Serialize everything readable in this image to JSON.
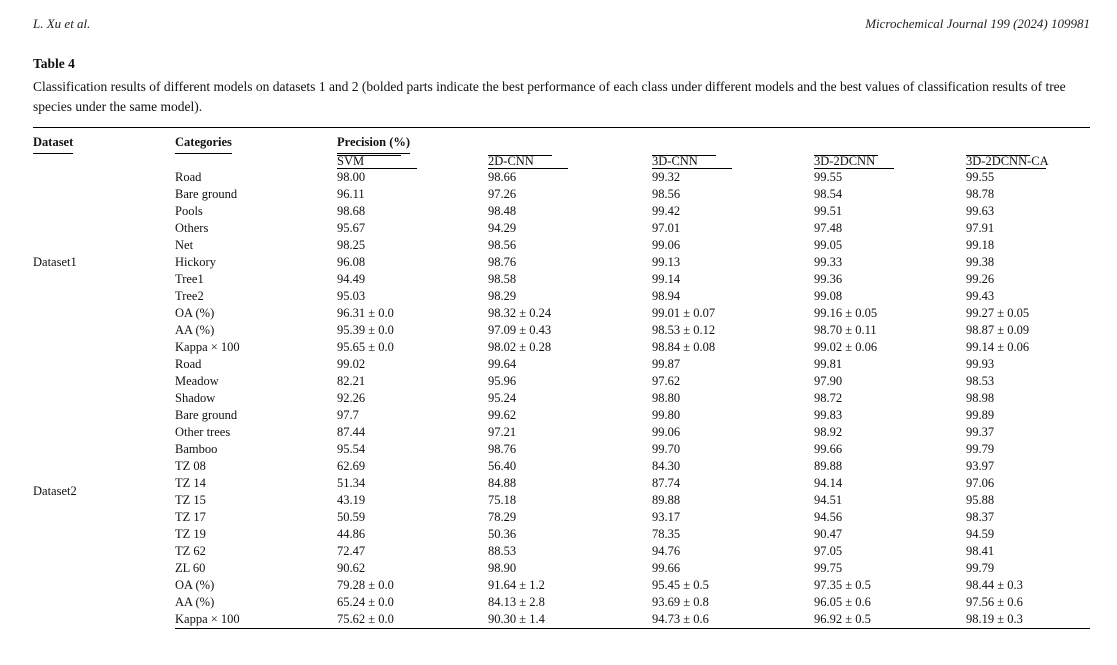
{
  "page_header": {
    "authors": "L. Xu et al.",
    "journal": "Microchemical Journal 199 (2024) 109981"
  },
  "table": {
    "label": "Table 4",
    "caption": "Classification results of different models on datasets 1 and 2 (bolded parts indicate the best performance of each class under different models and the best values of classification results of tree species under the same model).",
    "col_headers": {
      "dataset": "Dataset",
      "categories": "Categories",
      "spanner": "Precision (%)",
      "models": [
        "SVM",
        "2D-CNN",
        "3D-CNN",
        "3D-2DCNN",
        "3D-2DCNN-CA"
      ]
    },
    "sections": [
      {
        "dataset": "Dataset1",
        "rows": [
          {
            "category": "Road",
            "label_bold": false,
            "values": [
              "98.00",
              "98.66",
              "99.32",
              "99.55",
              "99.55"
            ],
            "bold": [
              0,
              0,
              0,
              0,
              1
            ]
          },
          {
            "category": "Bare ground",
            "label_bold": false,
            "values": [
              "96.11",
              "97.26",
              "98.56",
              "98.54",
              "98.78"
            ],
            "bold": [
              0,
              0,
              0,
              0,
              1
            ]
          },
          {
            "category": "Pools",
            "label_bold": false,
            "values": [
              "98.68",
              "98.48",
              "99.42",
              "99.51",
              "99.63"
            ],
            "bold": [
              0,
              0,
              0,
              0,
              1
            ]
          },
          {
            "category": "Others",
            "label_bold": false,
            "values": [
              "95.67",
              "94.29",
              "97.01",
              "97.48",
              "97.91"
            ],
            "bold": [
              0,
              0,
              0,
              0,
              1
            ]
          },
          {
            "category": "Net",
            "label_bold": false,
            "values": [
              "98.25",
              "98.56",
              "99.06",
              "99.05",
              "99.18"
            ],
            "bold": [
              0,
              0,
              0,
              0,
              1
            ]
          },
          {
            "category": "Hickory",
            "label_bold": false,
            "values": [
              "96.08",
              "98.76",
              "99.13",
              "99.33",
              "99.38"
            ],
            "bold": [
              1,
              1,
              0,
              0,
              1
            ]
          },
          {
            "category": "Tree1",
            "label_bold": false,
            "values": [
              "94.49",
              "98.58",
              "99.14",
              "99.36",
              "99.26"
            ],
            "bold": [
              0,
              0,
              1,
              1,
              0
            ]
          },
          {
            "category": "Tree2",
            "label_bold": false,
            "values": [
              "95.03",
              "98.29",
              "98.94",
              "99.08",
              "99.43"
            ],
            "bold": [
              0,
              0,
              0,
              0,
              1
            ]
          },
          {
            "category": "OA (%)",
            "label_bold": true,
            "values": [
              "96.31 ± 0.0",
              "98.32 ± 0.24",
              "99.01 ± 0.07",
              "99.16 ± 0.05",
              "99.27 ± 0.05"
            ],
            "bold": [
              0,
              0,
              0,
              0,
              0
            ]
          },
          {
            "category": "AA (%)",
            "label_bold": true,
            "values": [
              "95.39 ± 0.0",
              "97.09 ± 0.43",
              "98.53 ± 0.12",
              "98.70 ± 0.11",
              "98.87 ± 0.09"
            ],
            "bold": [
              0,
              0,
              0,
              0,
              0
            ]
          },
          {
            "category": "Kappa × 100",
            "label_bold": true,
            "values": [
              "95.65 ± 0.0",
              "98.02 ± 0.28",
              "98.84 ± 0.08",
              "99.02 ± 0.06",
              "99.14 ± 0.06"
            ],
            "bold": [
              0,
              0,
              0,
              0,
              0
            ]
          }
        ]
      },
      {
        "dataset": "Dataset2",
        "rows": [
          {
            "category": "Road",
            "label_bold": false,
            "values": [
              "99.02",
              "99.64",
              "99.87",
              "99.81",
              "99.93"
            ],
            "bold": [
              0,
              0,
              0,
              0,
              1
            ]
          },
          {
            "category": "Meadow",
            "label_bold": false,
            "values": [
              "82.21",
              "95.96",
              "97.62",
              "97.90",
              "98.53"
            ],
            "bold": [
              0,
              0,
              0,
              0,
              1
            ]
          },
          {
            "category": "Shadow",
            "label_bold": false,
            "values": [
              "92.26",
              "95.24",
              "98.80",
              "98.72",
              "98.98"
            ],
            "bold": [
              0,
              0,
              0,
              0,
              1
            ]
          },
          {
            "category": "Bare ground",
            "label_bold": false,
            "values": [
              "97.7",
              "99.62",
              "99.80",
              "99.83",
              "99.89"
            ],
            "bold": [
              0,
              0,
              0,
              0,
              1
            ]
          },
          {
            "category": "Other trees",
            "label_bold": false,
            "values": [
              "87.44",
              "97.21",
              "99.06",
              "98.92",
              "99.37"
            ],
            "bold": [
              0,
              0,
              0,
              0,
              1
            ]
          },
          {
            "category": "Bamboo",
            "label_bold": false,
            "values": [
              "95.54",
              "98.76",
              "99.70",
              "99.66",
              "99.79"
            ],
            "bold": [
              0,
              0,
              0,
              0,
              1
            ]
          },
          {
            "category": "TZ 08",
            "label_bold": false,
            "values": [
              "62.69",
              "56.40",
              "84.30",
              "89.88",
              "93.97"
            ],
            "bold": [
              0,
              0,
              0,
              0,
              1
            ]
          },
          {
            "category": "TZ 14",
            "label_bold": false,
            "values": [
              "51.34",
              "84.88",
              "87.74",
              "94.14",
              "97.06"
            ],
            "bold": [
              0,
              0,
              0,
              0,
              1
            ]
          },
          {
            "category": "TZ 15",
            "label_bold": false,
            "values": [
              "43.19",
              "75.18",
              "89.88",
              "94.51",
              "95.88"
            ],
            "bold": [
              0,
              0,
              0,
              0,
              1
            ]
          },
          {
            "category": "TZ 17",
            "label_bold": false,
            "values": [
              "50.59",
              "78.29",
              "93.17",
              "94.56",
              "98.37"
            ],
            "bold": [
              0,
              0,
              0,
              0,
              1
            ]
          },
          {
            "category": "TZ 19",
            "label_bold": false,
            "values": [
              "44.86",
              "50.36",
              "78.35",
              "90.47",
              "94.59"
            ],
            "bold": [
              0,
              0,
              0,
              0,
              1
            ]
          },
          {
            "category": "TZ 62",
            "label_bold": false,
            "values": [
              "72.47",
              "88.53",
              "94.76",
              "97.05",
              "98.41"
            ],
            "bold": [
              0,
              0,
              0,
              0,
              1
            ]
          },
          {
            "category": "ZL 60",
            "label_bold": false,
            "values": [
              "90.62",
              "98.90",
              "99.66",
              "99.75",
              "99.79"
            ],
            "bold": [
              1,
              1,
              1,
              1,
              1
            ]
          },
          {
            "category": "OA (%)",
            "label_bold": true,
            "values": [
              "79.28 ± 0.0",
              "91.64 ± 1.2",
              "95.45 ± 0.5",
              "97.35 ± 0.5",
              "98.44 ± 0.3"
            ],
            "bold": [
              0,
              0,
              0,
              0,
              0
            ]
          },
          {
            "category": "AA (%)",
            "label_bold": true,
            "values": [
              "65.24 ± 0.0",
              "84.13 ± 2.8",
              "93.69 ± 0.8",
              "96.05 ± 0.6",
              "97.56 ± 0.6"
            ],
            "bold": [
              0,
              0,
              0,
              0,
              0
            ]
          },
          {
            "category": "Kappa × 100",
            "label_bold": true,
            "values": [
              "75.62 ± 0.0",
              "90.30 ± 1.4",
              "94.73 ± 0.6",
              "96.92 ± 0.5",
              "98.19 ± 0.3"
            ],
            "bold": [
              0,
              0,
              0,
              0,
              0
            ]
          }
        ]
      }
    ]
  }
}
